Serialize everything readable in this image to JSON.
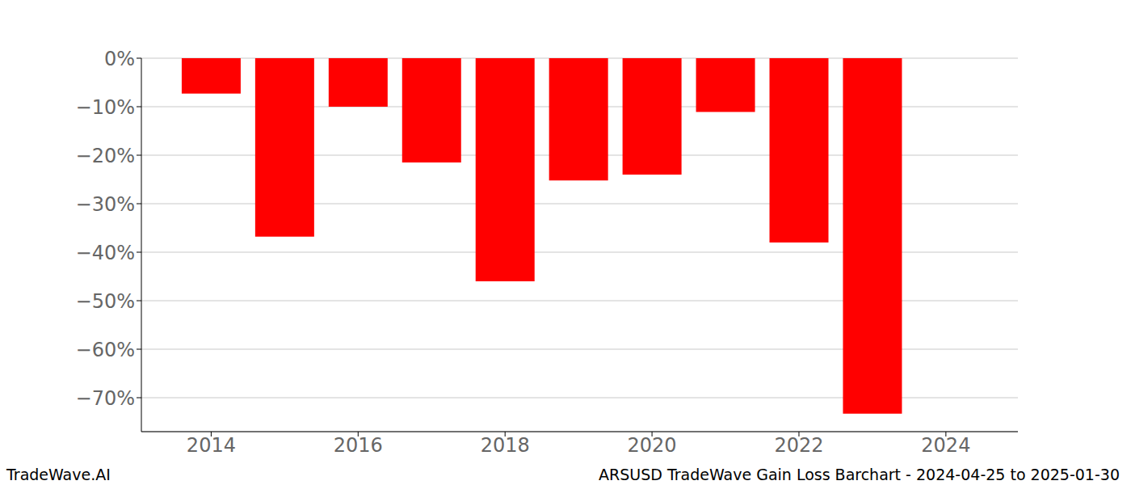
{
  "chart_data": {
    "type": "bar",
    "title": "ARSUSD TradeWave Gain Loss Barchart - 2024-04-25 to 2025-01-30",
    "annotations": [
      "TradeWave.AI"
    ],
    "x": [
      2014,
      2015,
      2016,
      2017,
      2018,
      2019,
      2020,
      2021,
      2022,
      2023
    ],
    "values": [
      -7.3,
      -36.8,
      -10,
      -21.5,
      -46,
      -25.2,
      -24,
      -11.1,
      -38,
      -73.3
    ],
    "color": "#ff0000",
    "xlim": [
      2013.05,
      2024.98
    ],
    "xticks": [
      2014,
      2016,
      2018,
      2020,
      2022,
      2024
    ],
    "ylim": [
      -77,
      0
    ],
    "yticks": [
      {
        "value": 0,
        "label": "0%"
      },
      {
        "value": -10,
        "label": "−10%"
      },
      {
        "value": -20,
        "label": "−20%"
      },
      {
        "value": -30,
        "label": "−30%"
      },
      {
        "value": -40,
        "label": "−40%"
      },
      {
        "value": -50,
        "label": "−50%"
      },
      {
        "value": -60,
        "label": "−60%"
      },
      {
        "value": -70,
        "label": "−70%"
      }
    ],
    "grid": true
  }
}
